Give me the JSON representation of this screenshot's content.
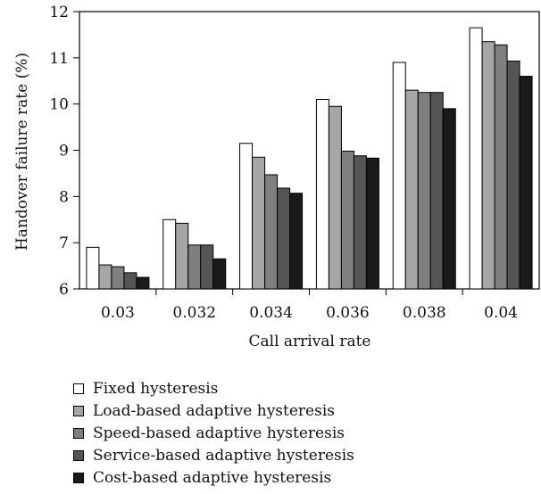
{
  "chart_data": {
    "type": "bar",
    "title": "",
    "xlabel": "Call arrival rate",
    "ylabel": "Handover failure rate (%)",
    "ylim": [
      6,
      12
    ],
    "yticks": [
      "6",
      "7",
      "8",
      "9",
      "10",
      "11",
      "12"
    ],
    "categories": [
      "0.03",
      "0.032",
      "0.034",
      "0.036",
      "0.038",
      "0.04"
    ],
    "series": [
      {
        "name": "Fixed hysteresis",
        "color": "#ffffff",
        "values": [
          6.9,
          7.5,
          9.15,
          10.1,
          10.9,
          11.65
        ]
      },
      {
        "name": "Load-based adaptive hysteresis",
        "color": "#a6a6a6",
        "values": [
          6.52,
          7.42,
          8.85,
          9.95,
          10.3,
          11.35
        ]
      },
      {
        "name": "Speed-based adaptive hysteresis",
        "color": "#7f7f7f",
        "values": [
          6.48,
          6.95,
          8.47,
          8.98,
          10.25,
          11.28
        ]
      },
      {
        "name": "Service-based adaptive hysteresis",
        "color": "#555555",
        "values": [
          6.35,
          6.95,
          8.18,
          8.88,
          10.25,
          10.93
        ]
      },
      {
        "name": "Cost-based adaptive hysteresis",
        "color": "#1a1a1a",
        "values": [
          6.25,
          6.65,
          8.07,
          8.83,
          9.9,
          10.6
        ]
      }
    ],
    "legend_position": "bottom-left",
    "grid": false
  }
}
